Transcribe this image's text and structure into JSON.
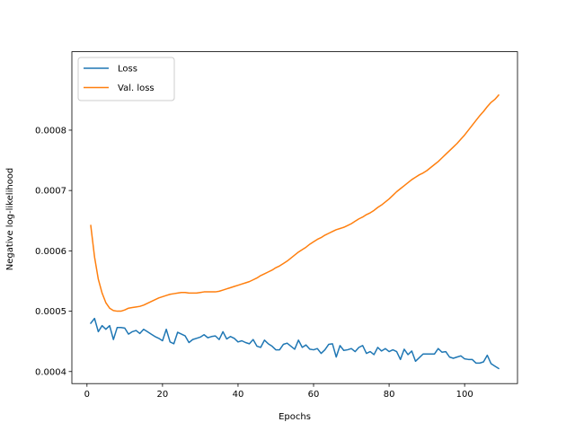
{
  "chart_data": {
    "type": "line",
    "title": "",
    "xlabel": "Epochs",
    "ylabel": "Negative log-likelihood",
    "xlim": [
      -4,
      114
    ],
    "ylim": [
      0.00038,
      0.00093
    ],
    "xticks": [
      0,
      20,
      40,
      60,
      80,
      100
    ],
    "xtick_labels": [
      "0",
      "20",
      "40",
      "60",
      "80",
      "100"
    ],
    "yticks": [
      0.0004,
      0.0005,
      0.0006,
      0.0007,
      0.0008
    ],
    "ytick_labels": [
      "0.0004",
      "0.0005",
      "0.0006",
      "0.0007",
      "0.0008"
    ],
    "grid": false,
    "legend_position": "upper-left",
    "series": [
      {
        "name": "Loss",
        "color": "#1f77b4",
        "x": [
          1,
          2,
          3,
          4,
          5,
          6,
          7,
          8,
          9,
          10,
          11,
          12,
          13,
          14,
          15,
          16,
          17,
          18,
          19,
          20,
          21,
          22,
          23,
          24,
          25,
          26,
          27,
          28,
          29,
          30,
          31,
          32,
          33,
          34,
          35,
          36,
          37,
          38,
          39,
          40,
          41,
          42,
          43,
          44,
          45,
          46,
          47,
          48,
          49,
          50,
          51,
          52,
          53,
          54,
          55,
          56,
          57,
          58,
          59,
          60,
          61,
          62,
          63,
          64,
          65,
          66,
          67,
          68,
          69,
          70,
          71,
          72,
          73,
          74,
          75,
          76,
          77,
          78,
          79,
          80,
          81,
          82,
          83,
          84,
          85,
          86,
          87,
          88,
          89,
          90,
          91,
          92,
          93,
          94,
          95,
          96,
          97,
          98,
          99,
          100,
          101,
          102,
          103,
          104,
          105,
          106,
          107,
          108,
          109
        ],
        "values": [
          0.00048,
          0.000488,
          0.000466,
          0.000476,
          0.00047,
          0.000476,
          0.000453,
          0.000473,
          0.000473,
          0.000472,
          0.000462,
          0.000466,
          0.000468,
          0.000463,
          0.00047,
          0.000466,
          0.000462,
          0.000458,
          0.000455,
          0.000451,
          0.00047,
          0.000449,
          0.000446,
          0.000465,
          0.000462,
          0.000459,
          0.000448,
          0.000453,
          0.000455,
          0.000457,
          0.000461,
          0.000456,
          0.000458,
          0.000459,
          0.000453,
          0.000466,
          0.000454,
          0.000458,
          0.000455,
          0.000449,
          0.000451,
          0.000448,
          0.000446,
          0.000453,
          0.000442,
          0.00044,
          0.000452,
          0.000446,
          0.000442,
          0.000436,
          0.000436,
          0.000445,
          0.000447,
          0.000442,
          0.000437,
          0.000452,
          0.00044,
          0.000444,
          0.000437,
          0.000436,
          0.000438,
          0.00043,
          0.000436,
          0.000445,
          0.000446,
          0.000424,
          0.000443,
          0.000435,
          0.000436,
          0.000438,
          0.000433,
          0.00044,
          0.000443,
          0.00043,
          0.000433,
          0.000428,
          0.00044,
          0.000434,
          0.000438,
          0.000433,
          0.000436,
          0.000433,
          0.00042,
          0.000437,
          0.000428,
          0.000434,
          0.000417,
          0.000423,
          0.000429,
          0.000429,
          0.000429,
          0.000429,
          0.000438,
          0.000432,
          0.000433,
          0.000424,
          0.000422,
          0.000424,
          0.000426,
          0.000421,
          0.00042,
          0.00042,
          0.000414,
          0.000414,
          0.000416,
          0.000427,
          0.000413,
          0.000409,
          0.000405
        ]
      },
      {
        "name": "Val. loss",
        "color": "#ff7f0e",
        "x": [
          1,
          2,
          3,
          4,
          5,
          6,
          7,
          8,
          9,
          10,
          11,
          12,
          13,
          14,
          15,
          16,
          17,
          18,
          19,
          20,
          21,
          22,
          23,
          24,
          25,
          26,
          27,
          28,
          29,
          30,
          31,
          32,
          33,
          34,
          35,
          36,
          37,
          38,
          39,
          40,
          41,
          42,
          43,
          44,
          45,
          46,
          47,
          48,
          49,
          50,
          51,
          52,
          53,
          54,
          55,
          56,
          57,
          58,
          59,
          60,
          61,
          62,
          63,
          64,
          65,
          66,
          67,
          68,
          69,
          70,
          71,
          72,
          73,
          74,
          75,
          76,
          77,
          78,
          79,
          80,
          81,
          82,
          83,
          84,
          85,
          86,
          87,
          88,
          89,
          90,
          91,
          92,
          93,
          94,
          95,
          96,
          97,
          98,
          99,
          100,
          101,
          102,
          103,
          104,
          105,
          106,
          107,
          108,
          109
        ],
        "values": [
          0.000642,
          0.00059,
          0.000553,
          0.00053,
          0.000514,
          0.000505,
          0.000501,
          0.0005,
          0.0005,
          0.000502,
          0.000505,
          0.000506,
          0.000507,
          0.000508,
          0.00051,
          0.000513,
          0.000516,
          0.000519,
          0.000522,
          0.000524,
          0.000526,
          0.000528,
          0.000529,
          0.00053,
          0.000531,
          0.000531,
          0.00053,
          0.00053,
          0.00053,
          0.000531,
          0.000532,
          0.000532,
          0.000532,
          0.000532,
          0.000533,
          0.000535,
          0.000537,
          0.000539,
          0.000541,
          0.000543,
          0.000545,
          0.000547,
          0.000549,
          0.000552,
          0.000555,
          0.000559,
          0.000562,
          0.000565,
          0.000568,
          0.000572,
          0.000575,
          0.000579,
          0.000583,
          0.000588,
          0.000593,
          0.000598,
          0.000602,
          0.000606,
          0.000611,
          0.000615,
          0.000619,
          0.000622,
          0.000626,
          0.000629,
          0.000632,
          0.000635,
          0.000637,
          0.000639,
          0.000642,
          0.000645,
          0.000649,
          0.000653,
          0.000656,
          0.00066,
          0.000663,
          0.000667,
          0.000672,
          0.000676,
          0.000681,
          0.000686,
          0.000692,
          0.000698,
          0.000703,
          0.000708,
          0.000713,
          0.000718,
          0.000722,
          0.000726,
          0.000729,
          0.000733,
          0.000738,
          0.000743,
          0.000748,
          0.000754,
          0.00076,
          0.000766,
          0.000772,
          0.000778,
          0.000785,
          0.000792,
          0.0008,
          0.000808,
          0.000816,
          0.000824,
          0.000831,
          0.000839,
          0.000846,
          0.000851,
          0.000858
        ]
      }
    ]
  }
}
